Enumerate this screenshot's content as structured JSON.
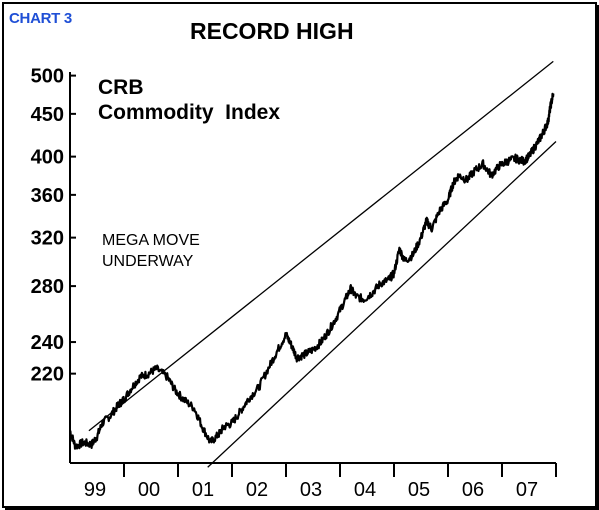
{
  "header": {
    "chart_label": "CHART 3",
    "title": "RECORD HIGH"
  },
  "colors": {
    "chart_label": "#1f4fd6",
    "line": "#000000"
  },
  "chart_data": {
    "type": "line",
    "title": "RECORD HIGH",
    "series_label": [
      "CRB",
      "Commodity  Index"
    ],
    "annotation": [
      "MEGA MOVE",
      "UNDERWAY"
    ],
    "y_scale": "log",
    "ylim": [
      172,
      505
    ],
    "xlim": [
      1999.0,
      2008.0
    ],
    "y_ticks": [
      {
        "label": "500",
        "value": 500
      },
      {
        "label": "450",
        "value": 450
      },
      {
        "label": "400",
        "value": 400
      },
      {
        "label": "360",
        "value": 360
      },
      {
        "label": "320",
        "value": 320
      },
      {
        "label": "280",
        "value": 280
      },
      {
        "label": "240",
        "value": 240
      },
      {
        "label": "220",
        "value": 220
      }
    ],
    "x_ticks": [
      {
        "label": "99",
        "value": 1999.0
      },
      {
        "label": "00",
        "value": 2000.0
      },
      {
        "label": "01",
        "value": 2001.0
      },
      {
        "label": "02",
        "value": 2002.0
      },
      {
        "label": "03",
        "value": 2003.0
      },
      {
        "label": "04",
        "value": 2004.0
      },
      {
        "label": "05",
        "value": 2005.0
      },
      {
        "label": "06",
        "value": 2006.0
      },
      {
        "label": "07",
        "value": 2007.0
      }
    ],
    "series": [
      {
        "x": [
          1999.0,
          1999.1,
          1999.25,
          1999.4,
          1999.5,
          1999.6,
          1999.75,
          1999.9,
          2000.0,
          2000.15,
          2000.3,
          2000.45,
          2000.6,
          2000.8,
          2000.95,
          2001.1,
          2001.3,
          2001.45,
          2001.6,
          2001.75,
          2001.85,
          2002.0,
          2002.15,
          2002.3,
          2002.5,
          2002.7,
          2002.85,
          2003.0,
          2003.1,
          2003.2,
          2003.35,
          2003.5,
          2003.65,
          2003.8,
          2003.95,
          2004.1,
          2004.2,
          2004.3,
          2004.45,
          2004.6,
          2004.75,
          2004.9,
          2005.0,
          2005.1,
          2005.2,
          2005.35,
          2005.5,
          2005.6,
          2005.7,
          2005.85,
          2006.0,
          2006.1,
          2006.2,
          2006.35,
          2006.5,
          2006.65,
          2006.8,
          2006.95,
          2007.1,
          2007.25,
          2007.4,
          2007.5,
          2007.6,
          2007.7,
          2007.78,
          2007.85,
          2007.9,
          2007.95
        ],
        "values": [
          188,
          180,
          182,
          181,
          185,
          192,
          196,
          202,
          205,
          212,
          218,
          220,
          223,
          218,
          210,
          205,
          200,
          190,
          182,
          186,
          190,
          192,
          198,
          205,
          212,
          225,
          235,
          245,
          238,
          230,
          232,
          235,
          240,
          248,
          258,
          270,
          278,
          272,
          270,
          275,
          282,
          285,
          290,
          310,
          300,
          305,
          320,
          335,
          328,
          345,
          355,
          372,
          380,
          375,
          385,
          392,
          380,
          390,
          395,
          398,
          395,
          400,
          410,
          420,
          430,
          440,
          460,
          476
        ]
      }
    ],
    "trend_channel": {
      "upper": {
        "x": [
          1999.35,
          2007.95
        ],
        "values": [
          188,
          520
        ]
      },
      "lower": {
        "x": [
          2001.55,
          2008.0
        ],
        "values": [
          170,
          417
        ]
      }
    },
    "grid": false,
    "legend": "none"
  }
}
